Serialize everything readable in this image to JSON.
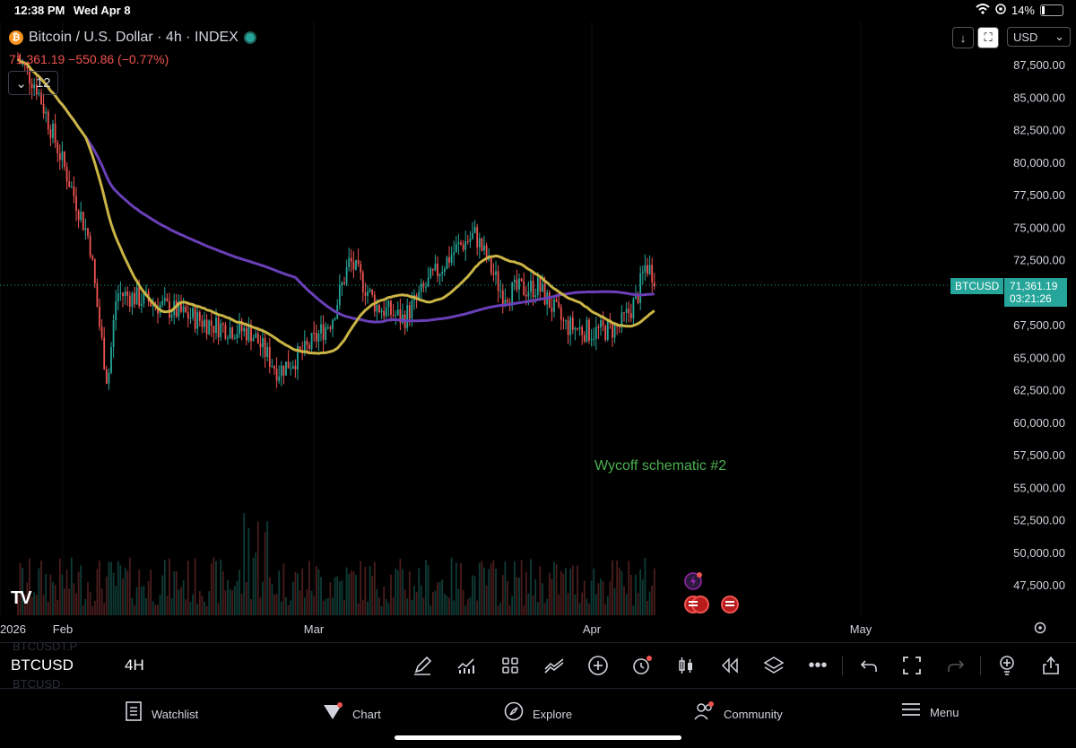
{
  "status": {
    "time": "12:38 PM",
    "date": "Wed Apr 8",
    "battery": "14%"
  },
  "legend": {
    "title": "Bitcoin / U.S. Dollar · 4h · INDEX",
    "price": "71,361.19 −550.86 (−0.77%)",
    "indicators_count": "12"
  },
  "controls": {
    "currency": "USD"
  },
  "price_axis": [
    "87,500.00",
    "85,000.00",
    "82,500.00",
    "80,000.00",
    "77,500.00",
    "75,000.00",
    "72,500.00",
    "70,000.00",
    "67,500.00",
    "65,000.00",
    "62,500.00",
    "60,000.00",
    "57,500.00",
    "55,000.00",
    "52,500.00",
    "50,000.00",
    "47,500.00"
  ],
  "time_axis": [
    "2026",
    "Feb",
    "Mar",
    "Apr",
    "May"
  ],
  "price_tag": {
    "symbol": "BTCUSD",
    "price": "71,361.19",
    "countdown": "03:21:26"
  },
  "annotation": "Wycoff schematic #2",
  "toolbar": {
    "symbol": "BTCUSD",
    "timeframe": "4H",
    "ghost_1": "BTCUSDT.P",
    "ghost_2": "BTCUSD"
  },
  "nav": {
    "watchlist": "Watchlist",
    "chart": "Chart",
    "explore": "Explore",
    "community": "Community",
    "menu": "Menu"
  },
  "colors": {
    "up": "#26a69a",
    "down": "#ef5350",
    "ma_fast": "#c9b445",
    "ma_slow": "#6a3fb8",
    "annotation": "#4caf50"
  },
  "chart_data": {
    "type": "candlestick",
    "y_range": [
      47500,
      87500
    ],
    "x_dates": [
      "2026-01-25",
      "2026-05-05"
    ],
    "series": [
      {
        "date": "2026-01-27",
        "close": 88000
      },
      {
        "date": "2026-01-29",
        "close": 86000
      },
      {
        "date": "2026-01-31",
        "close": 82000
      },
      {
        "date": "2026-02-02",
        "close": 78000
      },
      {
        "date": "2026-02-04",
        "close": 74000
      },
      {
        "date": "2026-02-05",
        "close": 68000
      },
      {
        "date": "2026-02-06",
        "close": 63000
      },
      {
        "date": "2026-02-07",
        "close": 70000
      },
      {
        "date": "2026-02-10",
        "close": 69500
      },
      {
        "date": "2026-02-14",
        "close": 68500
      },
      {
        "date": "2026-02-18",
        "close": 67500
      },
      {
        "date": "2026-02-22",
        "close": 67000
      },
      {
        "date": "2026-02-25",
        "close": 64000
      },
      {
        "date": "2026-02-28",
        "close": 65500
      },
      {
        "date": "2026-03-03",
        "close": 68000
      },
      {
        "date": "2026-03-05",
        "close": 72500
      },
      {
        "date": "2026-03-08",
        "close": 69000
      },
      {
        "date": "2026-03-11",
        "close": 68000
      },
      {
        "date": "2026-03-14",
        "close": 71000
      },
      {
        "date": "2026-03-17",
        "close": 73500
      },
      {
        "date": "2026-03-19",
        "close": 74500
      },
      {
        "date": "2026-03-22",
        "close": 70000
      },
      {
        "date": "2026-03-26",
        "close": 70500
      },
      {
        "date": "2026-03-29",
        "close": 67500
      },
      {
        "date": "2026-04-01",
        "close": 67000
      },
      {
        "date": "2026-04-04",
        "close": 67300
      },
      {
        "date": "2026-04-06",
        "close": 69500
      },
      {
        "date": "2026-04-07",
        "close": 72200
      },
      {
        "date": "2026-04-08",
        "close": 71361
      }
    ]
  }
}
